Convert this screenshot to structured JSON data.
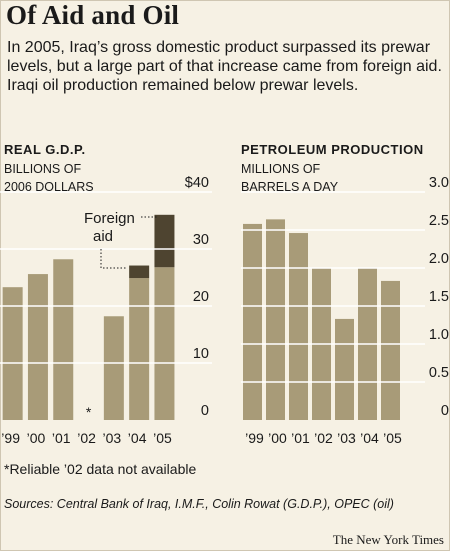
{
  "headline": "Of Aid and Oil",
  "intro": "In 2005, Iraq’s gross domestic product surpassed its prewar levels, but a large part of that increase came from foreign aid. Iraqi oil production remained below prewar levels.",
  "colors": {
    "background": "#f6f1e4",
    "bar": "#a89b78",
    "aid": "#4e4430",
    "gridline": "#ffffff"
  },
  "chart_data": [
    {
      "type": "bar",
      "title": "REAL G.D.P.",
      "ylabel_lines": [
        "BILLIONS OF",
        "2006 DOLLARS"
      ],
      "categories": [
        "’99",
        "’00",
        "’01",
        "’02",
        "’03",
        "’04",
        "’05"
      ],
      "series": [
        {
          "values": [
            23.3,
            25.6,
            28.2,
            null,
            18.2,
            24.9,
            26.8
          ]
        },
        {
          "name": "Foreign aid",
          "values": [
            0,
            0,
            0,
            0,
            0,
            2.2,
            9.2
          ]
        }
      ],
      "missing_marker": "*",
      "annotation": "Foreign aid",
      "yticks": [
        "0",
        "10",
        "20",
        "30",
        "$40"
      ],
      "ylim": [
        0,
        40
      ],
      "grid": true
    },
    {
      "type": "bar",
      "title": "PETROLEUM PRODUCTION",
      "ylabel_lines": [
        "MILLIONS OF",
        "BARRELS A DAY"
      ],
      "categories": [
        "’99",
        "’00",
        "’01",
        "’02",
        "’03",
        "’04",
        "’05"
      ],
      "series": [
        {
          "values": [
            2.58,
            2.64,
            2.46,
            2.0,
            1.33,
            2.0,
            1.83
          ]
        }
      ],
      "yticks": [
        "0",
        "0.5",
        "1.0",
        "1.5",
        "2.0",
        "2.5",
        "3.0"
      ],
      "ylim": [
        0,
        3.0
      ],
      "grid": true
    }
  ],
  "footnote": "*Reliable ’02 data not available",
  "sources": "Sources: Central Bank of Iraq, I.M.F., Colin Rowat (G.D.P.), OPEC (oil)",
  "credit": "The New York Times"
}
